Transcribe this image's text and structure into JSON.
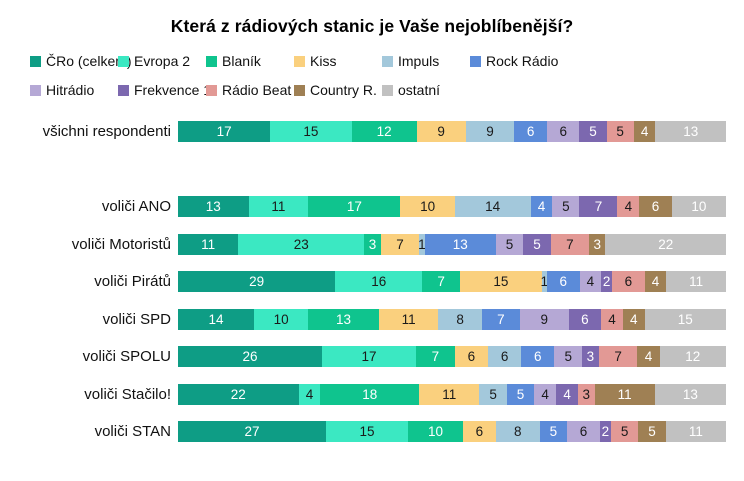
{
  "chart_data": {
    "type": "bar",
    "variant": "stacked-horizontal-100pct",
    "title": "Která z rádiových stanic je Vaše nejoblíbenější?",
    "legend_position": "top",
    "grid": false,
    "unit": "%",
    "series": [
      {
        "name": "ČRo (celkem)",
        "color": "#0E9D85",
        "label_color": "#ffffff"
      },
      {
        "name": "Evropa 2",
        "color": "#3BE8C2",
        "label_color": "#1a1a1a"
      },
      {
        "name": "Blaník",
        "color": "#0FC48E",
        "label_color": "#ffffff"
      },
      {
        "name": "Kiss",
        "color": "#FAD07E",
        "label_color": "#1a1a1a"
      },
      {
        "name": "Impuls",
        "color": "#A3C8DB",
        "label_color": "#1a1a1a"
      },
      {
        "name": "Rock Rádio",
        "color": "#5B8BD9",
        "label_color": "#ffffff"
      },
      {
        "name": "Hitrádio",
        "color": "#B5A8D5",
        "label_color": "#1a1a1a"
      },
      {
        "name": "Frekvence 1",
        "color": "#7C68AF",
        "label_color": "#ffffff"
      },
      {
        "name": "Rádio Beat",
        "color": "#E29995",
        "label_color": "#1a1a1a"
      },
      {
        "name": "Country R.",
        "color": "#9F8054",
        "label_color": "#ffffff"
      },
      {
        "name": "ostatní",
        "color": "#C1C1C1",
        "label_color": "#ffffff"
      }
    ],
    "categories": [
      "všichni respondenti",
      "voliči ANO",
      "voliči Motoristů",
      "voliči Pirátů",
      "voliči SPD",
      "voliči SPOLU",
      "voliči Stačilo!",
      "voliči STAN"
    ],
    "values": [
      [
        17,
        15,
        12,
        9,
        9,
        6,
        6,
        5,
        5,
        4,
        13
      ],
      [
        13,
        11,
        17,
        10,
        14,
        4,
        5,
        7,
        4,
        6,
        10
      ],
      [
        11,
        23,
        3,
        7,
        1,
        13,
        5,
        5,
        7,
        3,
        22
      ],
      [
        29,
        16,
        7,
        15,
        1,
        6,
        4,
        2,
        6,
        4,
        11
      ],
      [
        14,
        10,
        13,
        11,
        8,
        7,
        9,
        6,
        4,
        4,
        15
      ],
      [
        26,
        17,
        7,
        6,
        6,
        6,
        5,
        3,
        7,
        4,
        12
      ],
      [
        22,
        4,
        18,
        11,
        5,
        5,
        4,
        4,
        3,
        11,
        13
      ],
      [
        27,
        15,
        10,
        6,
        8,
        5,
        6,
        2,
        5,
        5,
        11
      ]
    ]
  }
}
